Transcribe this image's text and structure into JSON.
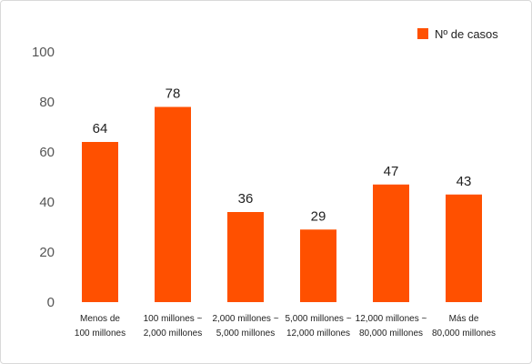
{
  "chart_data": {
    "type": "bar",
    "categories": [
      [
        "Menos de",
        "100 millones"
      ],
      [
        "100 millones ~",
        "2,000 millones"
      ],
      [
        "2,000 millones ~",
        "5,000 millones"
      ],
      [
        "5,000 millones ~",
        "12,000 millones"
      ],
      [
        "12,000 millones ~",
        "80,000 millones"
      ],
      [
        "Más de",
        "80,000 millones"
      ]
    ],
    "series": [
      {
        "name": "Nº de casos",
        "values": [
          64,
          78,
          36,
          29,
          47,
          43
        ]
      }
    ],
    "data_labels": [
      "64",
      "78",
      "36",
      "29",
      "47",
      "43"
    ],
    "yticks": [
      "0",
      "20",
      "40",
      "60",
      "80",
      "100"
    ],
    "ylim": [
      0,
      100
    ],
    "legend_position": "top-right",
    "bar_color": "#ff5000",
    "grid": false
  }
}
